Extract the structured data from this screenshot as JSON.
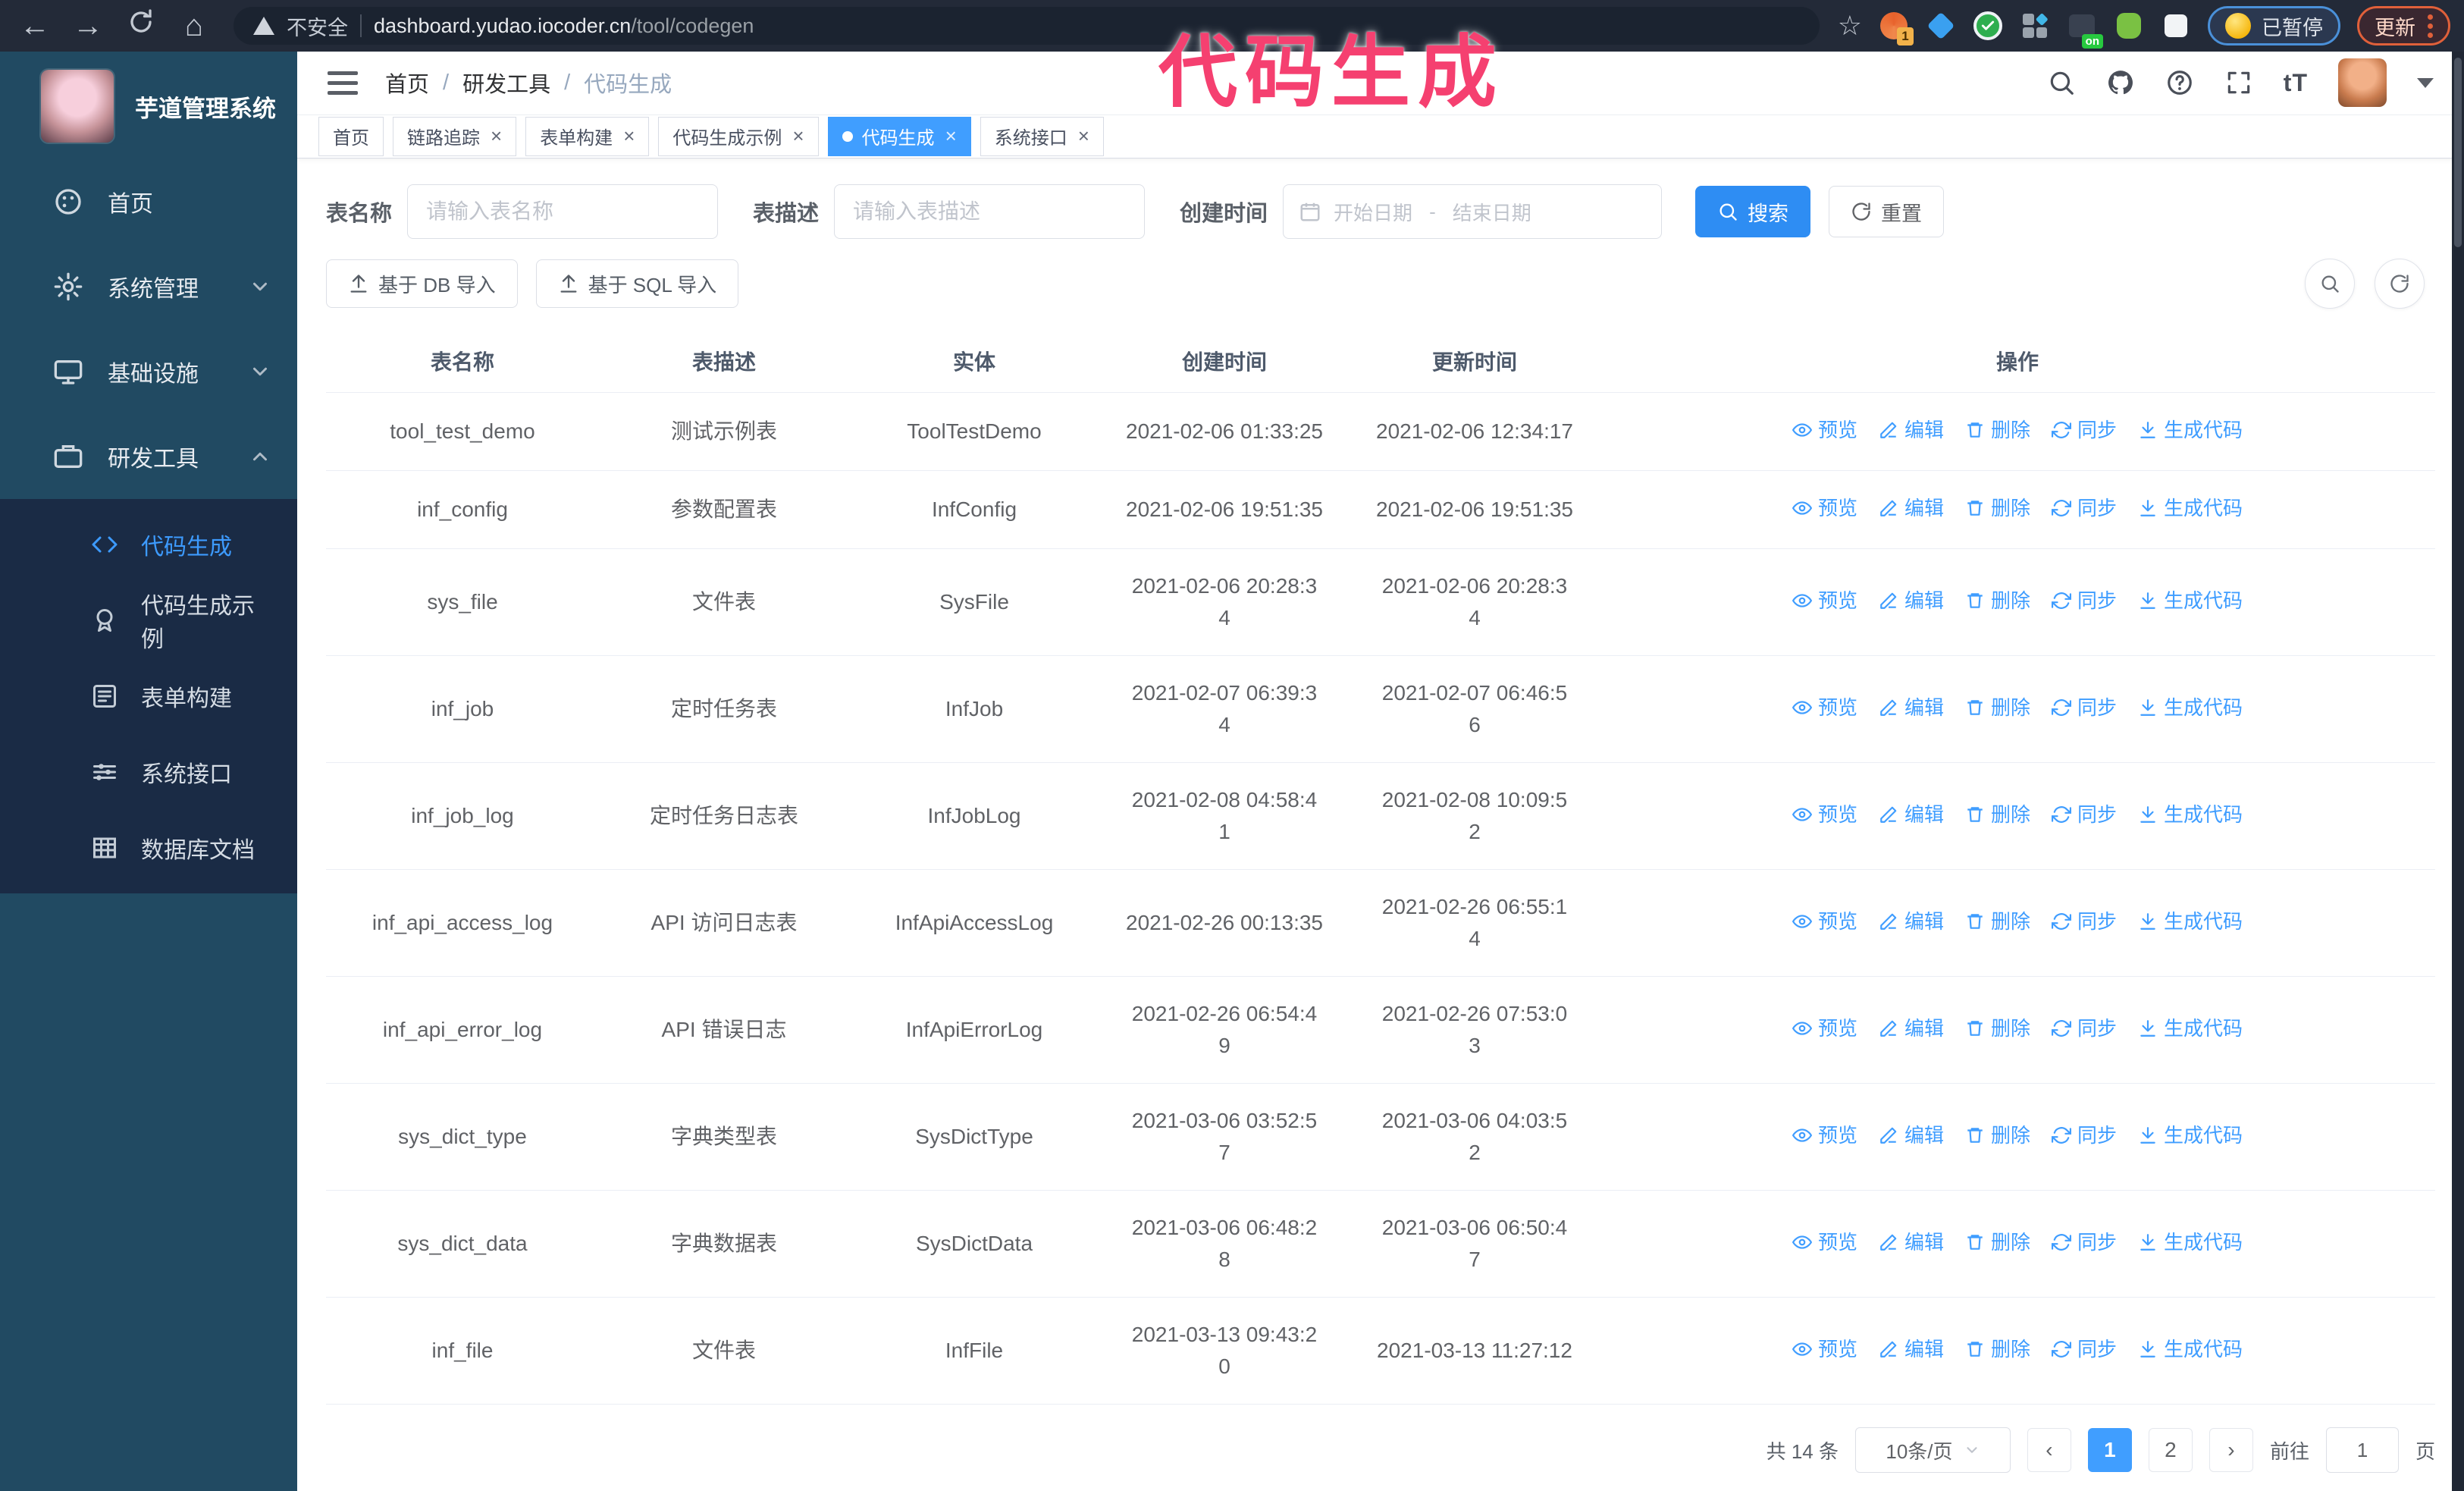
{
  "annotation": "代码生成",
  "browser": {
    "security_label": "不安全",
    "url_domain": "dashboard.yudao.iocoder.cn",
    "url_path": "/tool/codegen",
    "extension_badge": "1",
    "extension_on_badge": "on",
    "paused_label": "已暂停",
    "update_label": "更新"
  },
  "sidebar": {
    "app_title": "芋道管理系统",
    "menu": [
      {
        "label": "首页"
      },
      {
        "label": "系统管理"
      },
      {
        "label": "基础设施"
      },
      {
        "label": "研发工具"
      }
    ],
    "submenu": [
      {
        "label": "代码生成"
      },
      {
        "label": "代码生成示例"
      },
      {
        "label": "表单构建"
      },
      {
        "label": "系统接口"
      },
      {
        "label": "数据库文档"
      }
    ]
  },
  "header": {
    "breadcrumb": [
      "首页",
      "研发工具",
      "代码生成"
    ]
  },
  "tabs": [
    {
      "label": "首页"
    },
    {
      "label": "链路追踪"
    },
    {
      "label": "表单构建"
    },
    {
      "label": "代码生成示例"
    },
    {
      "label": "代码生成"
    },
    {
      "label": "系统接口"
    }
  ],
  "filters": {
    "table_name_label": "表名称",
    "table_name_placeholder": "请输入表名称",
    "table_desc_label": "表描述",
    "table_desc_placeholder": "请输入表描述",
    "create_time_label": "创建时间",
    "date_start_placeholder": "开始日期",
    "date_separator": "-",
    "date_end_placeholder": "结束日期",
    "search_label": "搜索",
    "reset_label": "重置"
  },
  "toolbar": {
    "import_db_label": "基于 DB 导入",
    "import_sql_label": "基于 SQL 导入"
  },
  "table": {
    "columns": [
      "表名称",
      "表描述",
      "实体",
      "创建时间",
      "更新时间",
      "操作"
    ],
    "actions": [
      "预览",
      "编辑",
      "删除",
      "同步",
      "生成代码"
    ],
    "rows": [
      {
        "name": "tool_test_demo",
        "desc": "测试示例表",
        "entity": "ToolTestDemo",
        "created": "2021-02-06 01:33:25",
        "updated": "2021-02-06 12:34:17"
      },
      {
        "name": "inf_config",
        "desc": "参数配置表",
        "entity": "InfConfig",
        "created": "2021-02-06 19:51:35",
        "updated": "2021-02-06 19:51:35"
      },
      {
        "name": "sys_file",
        "desc": "文件表",
        "entity": "SysFile",
        "created": "2021-02-06 20:28:3\n4",
        "updated": "2021-02-06 20:28:3\n4"
      },
      {
        "name": "inf_job",
        "desc": "定时任务表",
        "entity": "InfJob",
        "created": "2021-02-07 06:39:3\n4",
        "updated": "2021-02-07 06:46:5\n6"
      },
      {
        "name": "inf_job_log",
        "desc": "定时任务日志表",
        "entity": "InfJobLog",
        "created": "2021-02-08 04:58:4\n1",
        "updated": "2021-02-08 10:09:5\n2"
      },
      {
        "name": "inf_api_access_log",
        "desc": "API 访问日志表",
        "entity": "InfApiAccessLog",
        "created": "2021-02-26 00:13:35",
        "updated": "2021-02-26 06:55:1\n4"
      },
      {
        "name": "inf_api_error_log",
        "desc": "API 错误日志",
        "entity": "InfApiErrorLog",
        "created": "2021-02-26 06:54:4\n9",
        "updated": "2021-02-26 07:53:0\n3"
      },
      {
        "name": "sys_dict_type",
        "desc": "字典类型表",
        "entity": "SysDictType",
        "created": "2021-03-06 03:52:5\n7",
        "updated": "2021-03-06 04:03:5\n2"
      },
      {
        "name": "sys_dict_data",
        "desc": "字典数据表",
        "entity": "SysDictData",
        "created": "2021-03-06 06:48:2\n8",
        "updated": "2021-03-06 06:50:4\n7"
      },
      {
        "name": "inf_file",
        "desc": "文件表",
        "entity": "InfFile",
        "created": "2021-03-13 09:43:2\n0",
        "updated": "2021-03-13 11:27:12"
      }
    ]
  },
  "pagination": {
    "total": "共 14 条",
    "page_size": "10条/页",
    "pages": [
      "1",
      "2"
    ],
    "active_page": "1",
    "goto_label": "前往",
    "goto_value": "1",
    "page_label": "页"
  },
  "colors": {
    "primary": "#409eff",
    "annotation_pink": "#f54070",
    "sidebar_bg": "#214a62",
    "sidebar_submenu_bg": "#1a2b45",
    "chrome_bar_bg": "#232a38",
    "update_button_orange": "#e0603a",
    "paused_pill_border": "#4a90d9"
  }
}
